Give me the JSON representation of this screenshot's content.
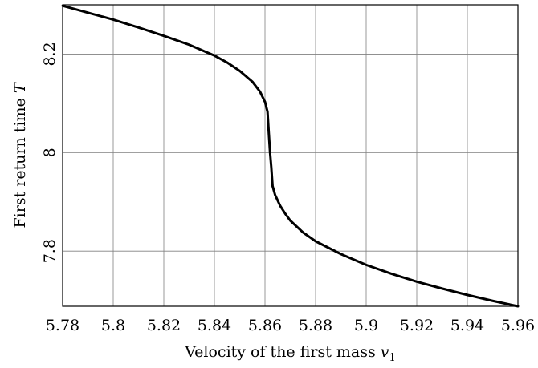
{
  "chart_data": {
    "type": "line",
    "title": "",
    "xlabel": "Velocity of the first mass",
    "xlabel_symbol": "v",
    "xlabel_subscript": "1",
    "ylabel": "First return time",
    "ylabel_symbol": "T",
    "xlim": [
      5.78,
      5.96
    ],
    "ylim": [
      7.688,
      8.3
    ],
    "x_ticks": [
      5.78,
      5.8,
      5.82,
      5.84,
      5.86,
      5.88,
      5.9,
      5.92,
      5.94,
      5.96
    ],
    "x_tick_labels": [
      "5.78",
      "5.8",
      "5.82",
      "5.84",
      "5.86",
      "5.88",
      "5.9",
      "5.92",
      "5.94",
      "5.96"
    ],
    "y_ticks": [
      7.8,
      8.0,
      8.2
    ],
    "y_tick_labels": [
      "7.8",
      "8",
      "8.2"
    ],
    "grid": true,
    "series": [
      {
        "color": "#000000",
        "x": [
          5.78,
          5.79,
          5.8,
          5.81,
          5.82,
          5.83,
          5.84,
          5.845,
          5.85,
          5.855,
          5.858,
          5.86,
          5.861,
          5.8615,
          5.862,
          5.8625,
          5.863,
          5.864,
          5.866,
          5.868,
          5.87,
          5.875,
          5.88,
          5.89,
          5.9,
          5.91,
          5.92,
          5.93,
          5.94,
          5.95,
          5.96
        ],
        "y": [
          8.298,
          8.284,
          8.27,
          8.254,
          8.237,
          8.219,
          8.197,
          8.183,
          8.166,
          8.144,
          8.124,
          8.103,
          8.083,
          8.04,
          8.0,
          7.97,
          7.932,
          7.914,
          7.892,
          7.876,
          7.862,
          7.838,
          7.82,
          7.794,
          7.772,
          7.754,
          7.738,
          7.724,
          7.711,
          7.699,
          7.688
        ]
      }
    ]
  }
}
